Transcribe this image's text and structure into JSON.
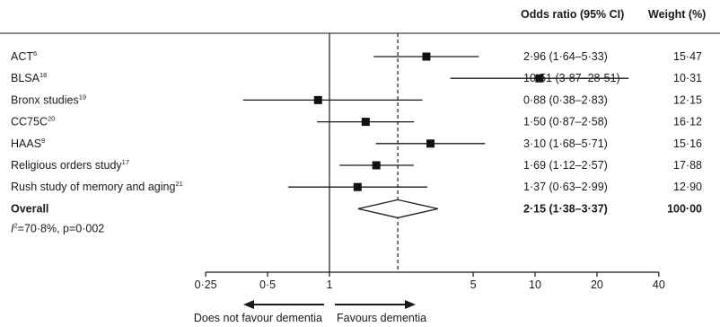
{
  "chart_data": {
    "type": "forest",
    "column_headers": {
      "or_ci": "Odds ratio (95% CI)",
      "weight": "Weight (%)"
    },
    "studies": [
      {
        "name": "ACT",
        "ref": "6",
        "or": 2.96,
        "lo": 1.64,
        "hi": 5.33,
        "or_text": "2·96 (1·64–5·33)",
        "weight_text": "15·47"
      },
      {
        "name": "BLSA",
        "ref": "18",
        "or": 10.51,
        "lo": 3.87,
        "hi": 28.51,
        "or_text": "10·51 (3·87–28·51)",
        "weight_text": "10·31"
      },
      {
        "name": "Bronx studies",
        "ref": "19",
        "or": 0.88,
        "lo": 0.38,
        "hi": 2.83,
        "or_text": "0·88 (0·38–2·83)",
        "weight_text": "12·15"
      },
      {
        "name": "CC75C",
        "ref": "20",
        "or": 1.5,
        "lo": 0.87,
        "hi": 2.58,
        "or_text": "1·50 (0·87–2·58)",
        "weight_text": "16·12"
      },
      {
        "name": "HAAS",
        "ref": "9",
        "or": 3.1,
        "lo": 1.68,
        "hi": 5.71,
        "or_text": "3·10 (1·68–5·71)",
        "weight_text": "15·16"
      },
      {
        "name": "Religious orders study",
        "ref": "17",
        "or": 1.69,
        "lo": 1.12,
        "hi": 2.57,
        "or_text": "1·69 (1·12–2·57)",
        "weight_text": "17·88"
      },
      {
        "name": "Rush study of memory and aging",
        "ref": "21",
        "or": 1.37,
        "lo": 0.63,
        "hi": 2.99,
        "or_text": "1·37 (0·63–2·99)",
        "weight_text": "12·90"
      }
    ],
    "overall": {
      "name": "Overall",
      "or": 2.15,
      "lo": 1.38,
      "hi": 3.37,
      "or_text": "2·15 (1·38–3·37)",
      "weight_text": "100·00"
    },
    "heterogeneity": {
      "symbol": "I",
      "sup": "2",
      "text": "=70·8%, p=0·002"
    },
    "x_axis": {
      "scale": "log",
      "ticks": [
        {
          "value": 0.25,
          "label": "0·25"
        },
        {
          "value": 0.5,
          "label": "0·5"
        },
        {
          "value": 1,
          "label": "1"
        },
        {
          "value": 5,
          "label": "5"
        },
        {
          "value": 10,
          "label": "10"
        },
        {
          "value": 20,
          "label": "20"
        },
        {
          "value": 40,
          "label": "40"
        }
      ],
      "null_line": 1,
      "pooled_line": 2.15
    },
    "direction_labels": {
      "left": "Does not favour dementia",
      "right": "Favours dementia"
    }
  }
}
